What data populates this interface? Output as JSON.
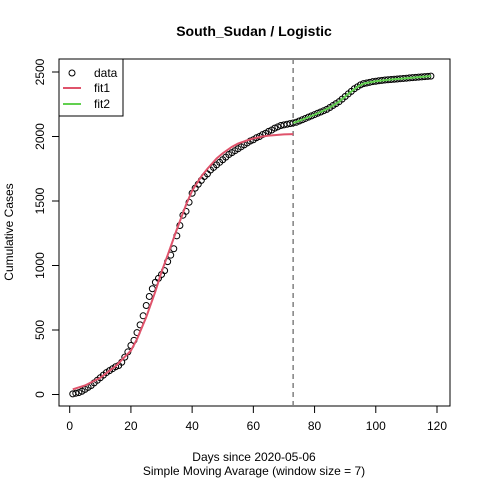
{
  "chart_data": {
    "type": "scatter",
    "title": "South_Sudan / Logistic",
    "xlabel": "Days since 2020-05-06",
    "subtitle": "Simple Moving Avarage (window size = 7)",
    "ylabel": "Cumulative Cases",
    "xlim": [
      0,
      120
    ],
    "ylim": [
      0,
      2500
    ],
    "xticks": [
      0,
      20,
      40,
      60,
      80,
      100,
      120
    ],
    "yticks": [
      0,
      500,
      1000,
      1500,
      2000,
      2500
    ],
    "split_x": 73,
    "legend": {
      "position": "top-left",
      "entries": [
        "data",
        "fit1",
        "fit2"
      ]
    },
    "colors": {
      "data": "#000000",
      "fit1": "#DF536B",
      "fit2": "#61D04F",
      "split": "#808080"
    },
    "data": [
      [
        1,
        5
      ],
      [
        2,
        10
      ],
      [
        3,
        15
      ],
      [
        4,
        25
      ],
      [
        5,
        40
      ],
      [
        6,
        55
      ],
      [
        7,
        70
      ],
      [
        8,
        90
      ],
      [
        9,
        110
      ],
      [
        10,
        130
      ],
      [
        11,
        150
      ],
      [
        12,
        170
      ],
      [
        13,
        185
      ],
      [
        14,
        200
      ],
      [
        15,
        215
      ],
      [
        16,
        225
      ],
      [
        17,
        250
      ],
      [
        18,
        290
      ],
      [
        19,
        330
      ],
      [
        20,
        380
      ],
      [
        21,
        420
      ],
      [
        22,
        480
      ],
      [
        23,
        540
      ],
      [
        24,
        610
      ],
      [
        25,
        690
      ],
      [
        26,
        760
      ],
      [
        27,
        820
      ],
      [
        28,
        870
      ],
      [
        29,
        900
      ],
      [
        30,
        930
      ],
      [
        31,
        960
      ],
      [
        32,
        1030
      ],
      [
        33,
        1080
      ],
      [
        34,
        1130
      ],
      [
        35,
        1230
      ],
      [
        36,
        1310
      ],
      [
        37,
        1390
      ],
      [
        38,
        1420
      ],
      [
        39,
        1490
      ],
      [
        40,
        1560
      ],
      [
        41,
        1600
      ],
      [
        42,
        1630
      ],
      [
        43,
        1660
      ],
      [
        44,
        1690
      ],
      [
        45,
        1710
      ],
      [
        46,
        1740
      ],
      [
        47,
        1760
      ],
      [
        48,
        1780
      ],
      [
        49,
        1800
      ],
      [
        50,
        1820
      ],
      [
        51,
        1840
      ],
      [
        52,
        1860
      ],
      [
        53,
        1875
      ],
      [
        54,
        1890
      ],
      [
        55,
        1905
      ],
      [
        56,
        1920
      ],
      [
        57,
        1935
      ],
      [
        58,
        1950
      ],
      [
        59,
        1965
      ],
      [
        60,
        1975
      ],
      [
        61,
        1990
      ],
      [
        62,
        2000
      ],
      [
        63,
        2015
      ],
      [
        64,
        2025
      ],
      [
        65,
        2040
      ],
      [
        66,
        2050
      ],
      [
        67,
        2065
      ],
      [
        68,
        2075
      ],
      [
        69,
        2085
      ],
      [
        70,
        2090
      ],
      [
        71,
        2095
      ],
      [
        72,
        2100
      ],
      [
        73,
        2105
      ],
      [
        74,
        2110
      ],
      [
        75,
        2120
      ],
      [
        76,
        2130
      ],
      [
        77,
        2140
      ],
      [
        78,
        2150
      ],
      [
        79,
        2160
      ],
      [
        80,
        2170
      ],
      [
        81,
        2180
      ],
      [
        82,
        2190
      ],
      [
        83,
        2200
      ],
      [
        84,
        2210
      ],
      [
        85,
        2225
      ],
      [
        86,
        2240
      ],
      [
        87,
        2255
      ],
      [
        88,
        2270
      ],
      [
        89,
        2290
      ],
      [
        90,
        2310
      ],
      [
        91,
        2330
      ],
      [
        92,
        2350
      ],
      [
        93,
        2370
      ],
      [
        94,
        2385
      ],
      [
        95,
        2400
      ],
      [
        96,
        2410
      ],
      [
        97,
        2415
      ],
      [
        98,
        2420
      ],
      [
        99,
        2425
      ],
      [
        100,
        2428
      ],
      [
        101,
        2432
      ],
      [
        102,
        2435
      ],
      [
        103,
        2438
      ],
      [
        104,
        2440
      ],
      [
        105,
        2442
      ],
      [
        106,
        2444
      ],
      [
        107,
        2446
      ],
      [
        108,
        2448
      ],
      [
        109,
        2450
      ],
      [
        110,
        2452
      ],
      [
        111,
        2454
      ],
      [
        112,
        2456
      ],
      [
        113,
        2458
      ],
      [
        114,
        2460
      ],
      [
        115,
        2462
      ],
      [
        116,
        2464
      ],
      [
        117,
        2466
      ],
      [
        118,
        2468
      ]
    ],
    "fit1": [
      [
        1,
        40
      ],
      [
        5,
        70
      ],
      [
        10,
        130
      ],
      [
        15,
        220
      ],
      [
        20,
        340
      ],
      [
        22,
        430
      ],
      [
        25,
        600
      ],
      [
        28,
        800
      ],
      [
        30,
        950
      ],
      [
        32,
        1080
      ],
      [
        35,
        1280
      ],
      [
        38,
        1470
      ],
      [
        40,
        1580
      ],
      [
        43,
        1690
      ],
      [
        45,
        1750
      ],
      [
        48,
        1830
      ],
      [
        50,
        1870
      ],
      [
        53,
        1920
      ],
      [
        55,
        1945
      ],
      [
        58,
        1970
      ],
      [
        60,
        1985
      ],
      [
        63,
        2000
      ],
      [
        65,
        2007
      ],
      [
        68,
        2013
      ],
      [
        70,
        2016
      ],
      [
        73,
        2018
      ]
    ],
    "fit2": [
      [
        73,
        2105
      ],
      [
        76,
        2130
      ],
      [
        79,
        2160
      ],
      [
        82,
        2190
      ],
      [
        85,
        2225
      ],
      [
        88,
        2270
      ],
      [
        91,
        2330
      ],
      [
        94,
        2385
      ],
      [
        96,
        2410
      ],
      [
        100,
        2428
      ],
      [
        105,
        2442
      ],
      [
        110,
        2452
      ],
      [
        115,
        2462
      ],
      [
        118,
        2468
      ]
    ]
  }
}
